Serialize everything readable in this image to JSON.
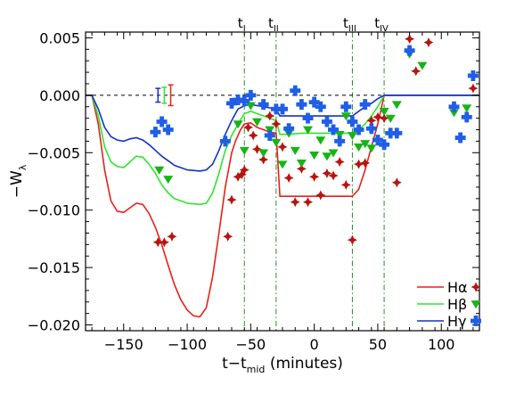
{
  "chart_data": {
    "type": "scatter",
    "xlabel": {
      "main": "t−t",
      "sub": "mid",
      "tail": " (minutes)"
    },
    "ylabel": {
      "main": "−W",
      "sub": "λ"
    },
    "xlim": [
      -180,
      130
    ],
    "ylim": [
      -0.0205,
      0.0055
    ],
    "xticks": [
      -150,
      -100,
      -50,
      0,
      50,
      100
    ],
    "xtick_labels": [
      "−150",
      "−100",
      "−50",
      "0",
      "50",
      "100"
    ],
    "yticks": [
      0.005,
      0.0,
      -0.005,
      -0.01,
      -0.015,
      -0.02
    ],
    "ytick_labels": [
      "0.005",
      "0.000",
      "−0.005",
      "−0.010",
      "−0.015",
      "−0.020"
    ],
    "zero_line": true,
    "contact_lines": [
      {
        "x": -55,
        "label": "t",
        "sub": "I"
      },
      {
        "x": -30,
        "label": "t",
        "sub": "II"
      },
      {
        "x": 30,
        "label": "t",
        "sub": "III"
      },
      {
        "x": 55,
        "label": "t",
        "sub": "IV"
      }
    ],
    "legend_position": "bottom-right",
    "series": [
      {
        "name": "Hα",
        "color": "#e8201a",
        "marker_color": "#b8140f",
        "marker": "diamond-star",
        "model": [
          [
            -180,
            0
          ],
          [
            -175,
            0
          ],
          [
            -170,
            -0.0025
          ],
          [
            -165,
            -0.0065
          ],
          [
            -160,
            -0.0092
          ],
          [
            -155,
            -0.0101
          ],
          [
            -150,
            -0.0102
          ],
          [
            -145,
            -0.0098
          ],
          [
            -140,
            -0.0094
          ],
          [
            -135,
            -0.0095
          ],
          [
            -130,
            -0.0103
          ],
          [
            -125,
            -0.0115
          ],
          [
            -120,
            -0.013
          ],
          [
            -115,
            -0.0148
          ],
          [
            -110,
            -0.0165
          ],
          [
            -105,
            -0.0178
          ],
          [
            -100,
            -0.0187
          ],
          [
            -95,
            -0.0192
          ],
          [
            -90,
            -0.0193
          ],
          [
            -85,
            -0.0185
          ],
          [
            -80,
            -0.0158
          ],
          [
            -75,
            -0.012
          ],
          [
            -70,
            -0.008
          ],
          [
            -65,
            -0.005
          ],
          [
            -62,
            -0.004
          ],
          [
            -58,
            -0.003
          ],
          [
            -55,
            -0.0025
          ],
          [
            -50,
            -0.0024
          ],
          [
            -45,
            -0.0028
          ],
          [
            -40,
            -0.003
          ],
          [
            -35,
            -0.0032
          ],
          [
            -30,
            -0.0033
          ],
          [
            -27,
            -0.0088
          ],
          [
            -20,
            -0.0088
          ],
          [
            -10,
            -0.0088
          ],
          [
            0,
            -0.0088
          ],
          [
            10,
            -0.0088
          ],
          [
            20,
            -0.0088
          ],
          [
            30,
            -0.0088
          ],
          [
            35,
            -0.0082
          ],
          [
            40,
            -0.0065
          ],
          [
            45,
            -0.0045
          ],
          [
            50,
            -0.0025
          ],
          [
            55,
            0
          ],
          [
            130,
            0
          ]
        ],
        "points": [
          [
            -123,
            -0.0128
          ],
          [
            -118,
            -0.0128
          ],
          [
            -112,
            -0.0123
          ],
          [
            -68,
            -0.0123
          ],
          [
            -65,
            -0.0091
          ],
          [
            -60,
            -0.0071
          ],
          [
            -57,
            -0.0069
          ],
          [
            -55,
            -0.0065
          ],
          [
            -52,
            -0.0028
          ],
          [
            -48,
            -0.0035
          ],
          [
            -45,
            -0.0047
          ],
          [
            -40,
            -0.0056
          ],
          [
            -35,
            -0.0018
          ],
          [
            -30,
            -0.0025
          ],
          [
            -25,
            -0.0045
          ],
          [
            -20,
            -0.0072
          ],
          [
            -15,
            -0.0093
          ],
          [
            -10,
            -0.0064
          ],
          [
            -5,
            -0.0093
          ],
          [
            0,
            -0.0071
          ],
          [
            5,
            -0.0087
          ],
          [
            10,
            -0.0068
          ],
          [
            15,
            -0.007
          ],
          [
            20,
            -0.0058
          ],
          [
            25,
            -0.0078
          ],
          [
            30,
            -0.0126
          ],
          [
            35,
            -0.006
          ],
          [
            40,
            -0.0059
          ],
          [
            45,
            -0.0022
          ],
          [
            50,
            -0.0019
          ],
          [
            55,
            -0.002
          ],
          [
            65,
            -0.0076
          ],
          [
            75,
            0.0049
          ],
          [
            80,
            0.0021
          ],
          [
            90,
            0.0046
          ],
          [
            125,
            0.0006
          ]
        ]
      },
      {
        "name": "Hβ",
        "color": "#2ee62e",
        "marker_color": "#16b516",
        "marker": "triangle-down",
        "model": [
          [
            -180,
            0
          ],
          [
            -175,
            0
          ],
          [
            -170,
            -0.0018
          ],
          [
            -165,
            -0.0045
          ],
          [
            -160,
            -0.0058
          ],
          [
            -155,
            -0.0062
          ],
          [
            -150,
            -0.0063
          ],
          [
            -145,
            -0.0058
          ],
          [
            -140,
            -0.0053
          ],
          [
            -135,
            -0.0054
          ],
          [
            -130,
            -0.006
          ],
          [
            -125,
            -0.0068
          ],
          [
            -120,
            -0.0078
          ],
          [
            -115,
            -0.0085
          ],
          [
            -110,
            -0.009
          ],
          [
            -100,
            -0.0094
          ],
          [
            -90,
            -0.0095
          ],
          [
            -85,
            -0.0094
          ],
          [
            -80,
            -0.0085
          ],
          [
            -75,
            -0.0068
          ],
          [
            -70,
            -0.0048
          ],
          [
            -65,
            -0.0035
          ],
          [
            -60,
            -0.0025
          ],
          [
            -55,
            -0.0016
          ],
          [
            -50,
            -0.0014
          ],
          [
            -45,
            -0.0016
          ],
          [
            -40,
            -0.0018
          ],
          [
            -35,
            -0.002
          ],
          [
            -30,
            -0.0022
          ],
          [
            -27,
            -0.0034
          ],
          [
            -20,
            -0.0034
          ],
          [
            -10,
            -0.0033
          ],
          [
            0,
            -0.0033
          ],
          [
            10,
            -0.0033
          ],
          [
            20,
            -0.0033
          ],
          [
            30,
            -0.0033
          ],
          [
            35,
            -0.003
          ],
          [
            40,
            -0.0025
          ],
          [
            45,
            -0.0018
          ],
          [
            50,
            -0.001
          ],
          [
            55,
            0
          ],
          [
            130,
            0
          ]
        ],
        "points": [
          [
            -122,
            -0.0065
          ],
          [
            -115,
            -0.0073
          ],
          [
            -60,
            -0.0025
          ],
          [
            -55,
            -0.0048
          ],
          [
            -50,
            -0.0009
          ],
          [
            -45,
            -0.0023
          ],
          [
            -40,
            -0.005
          ],
          [
            -35,
            -0.003
          ],
          [
            -30,
            -0.0041
          ],
          [
            -25,
            -0.006
          ],
          [
            -20,
            -0.0033
          ],
          [
            -15,
            -0.0048
          ],
          [
            -10,
            -0.0059
          ],
          [
            -5,
            -0.003
          ],
          [
            0,
            -0.0052
          ],
          [
            5,
            -0.0039
          ],
          [
            10,
            -0.0053
          ],
          [
            15,
            -0.005
          ],
          [
            20,
            -0.0034
          ],
          [
            25,
            -0.0018
          ],
          [
            30,
            -0.0035
          ],
          [
            35,
            -0.0045
          ],
          [
            40,
            -0.0042
          ],
          [
            45,
            -0.0046
          ],
          [
            50,
            -0.004
          ],
          [
            55,
            -0.0014
          ],
          [
            60,
            -0.002
          ],
          [
            65,
            -0.0008
          ],
          [
            75,
            0.0036
          ],
          [
            85,
            0.0026
          ],
          [
            110,
            -0.0015
          ],
          [
            120,
            -0.0011
          ]
        ]
      },
      {
        "name": "Hγ",
        "color": "#1431c8",
        "marker_color": "#1f5fe6",
        "marker": "plus",
        "model": [
          [
            -180,
            0
          ],
          [
            -175,
            0
          ],
          [
            -170,
            -0.0012
          ],
          [
            -165,
            -0.0028
          ],
          [
            -160,
            -0.0036
          ],
          [
            -155,
            -0.0039
          ],
          [
            -150,
            -0.004
          ],
          [
            -145,
            -0.0038
          ],
          [
            -140,
            -0.0037
          ],
          [
            -135,
            -0.0039
          ],
          [
            -130,
            -0.0043
          ],
          [
            -125,
            -0.0048
          ],
          [
            -120,
            -0.0053
          ],
          [
            -115,
            -0.0057
          ],
          [
            -110,
            -0.0061
          ],
          [
            -100,
            -0.0065
          ],
          [
            -90,
            -0.0066
          ],
          [
            -85,
            -0.0065
          ],
          [
            -80,
            -0.006
          ],
          [
            -75,
            -0.0048
          ],
          [
            -70,
            -0.0034
          ],
          [
            -65,
            -0.0022
          ],
          [
            -60,
            -0.0012
          ],
          [
            -55,
            -0.0009
          ],
          [
            -50,
            -0.0008
          ],
          [
            -45,
            -0.0009
          ],
          [
            -40,
            -0.001
          ],
          [
            -35,
            -0.0011
          ],
          [
            -30,
            -0.0012
          ],
          [
            -27,
            -0.0018
          ],
          [
            -20,
            -0.0018
          ],
          [
            -10,
            -0.0018
          ],
          [
            0,
            -0.0018
          ],
          [
            10,
            -0.0018
          ],
          [
            20,
            -0.0018
          ],
          [
            30,
            -0.0018
          ],
          [
            35,
            -0.0014
          ],
          [
            40,
            -0.001
          ],
          [
            45,
            -0.0007
          ],
          [
            50,
            -0.0003
          ],
          [
            55,
            0
          ],
          [
            130,
            0
          ]
        ],
        "points": [
          [
            -125,
            -0.0032
          ],
          [
            -120,
            -0.0023
          ],
          [
            -115,
            -0.003
          ],
          [
            -70,
            -0.004
          ],
          [
            -65,
            -0.0007
          ],
          [
            -60,
            -0.0004
          ],
          [
            -55,
            -0.0005
          ],
          [
            -50,
            0.0
          ],
          [
            -40,
            -0.0008
          ],
          [
            -35,
            -0.0035
          ],
          [
            -30,
            -0.0012
          ],
          [
            -25,
            -0.0012
          ],
          [
            -20,
            -0.0029
          ],
          [
            -15,
            0.0004
          ],
          [
            -10,
            -0.0008
          ],
          [
            -5,
            -0.002
          ],
          [
            0,
            -0.0006
          ],
          [
            5,
            -0.001
          ],
          [
            10,
            -0.0023
          ],
          [
            15,
            -0.003
          ],
          [
            20,
            -0.004
          ],
          [
            25,
            -0.001
          ],
          [
            30,
            -0.0023
          ],
          [
            35,
            -0.003
          ],
          [
            40,
            -0.0008
          ],
          [
            45,
            -0.0029
          ],
          [
            50,
            -0.0039
          ],
          [
            55,
            -0.0043
          ],
          [
            60,
            -0.0033
          ],
          [
            65,
            -0.0033
          ],
          [
            75,
            0.0039
          ],
          [
            110,
            -0.001
          ],
          [
            115,
            -0.0037
          ],
          [
            120,
            -0.0019
          ],
          [
            125,
            0.0017
          ]
        ]
      }
    ],
    "error_bars": [
      {
        "series": "Hγ",
        "x": -123,
        "y": 0.0,
        "err": 0.0006
      },
      {
        "series": "Hβ",
        "x": -118,
        "y": 0.0,
        "err": 0.0007
      },
      {
        "series": "Hα",
        "x": -113,
        "y": 0.0,
        "err": 0.0009
      }
    ]
  }
}
